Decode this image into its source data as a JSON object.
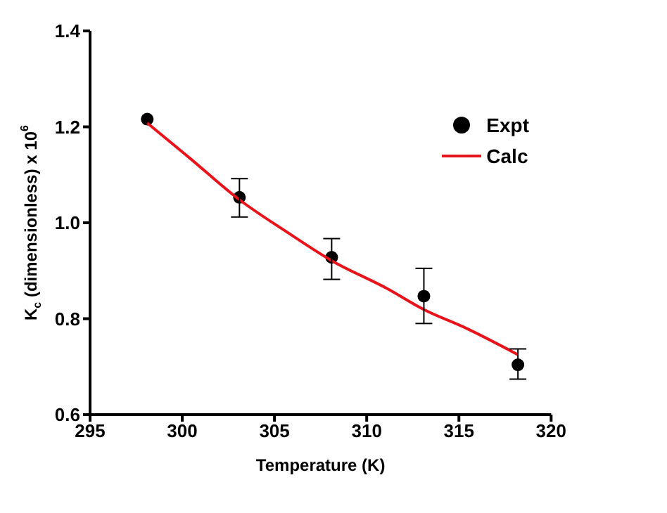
{
  "chart_data": {
    "type": "scatter",
    "xlabel": "Temperature (K)",
    "ylabel": "K$_{c}$ (dimensionless) x 10$^{6}$",
    "xlim": [
      295,
      320
    ],
    "xticks": [
      295,
      300,
      305,
      310,
      315,
      320
    ],
    "ylim": [
      0.6,
      1.4
    ],
    "yticks": [
      0.6,
      0.8,
      {
        "value": 1,
        "label": "1.0"
      },
      1.2,
      1.4
    ],
    "legend": "top right",
    "series": [
      {
        "name": "Expt",
        "color": "#000000",
        "marker": "circle",
        "x": [
          298.1,
          303.1,
          308.1,
          313.1,
          318.2
        ],
        "values": [
          1.216,
          1.053,
          0.928,
          0.847,
          0.704
        ],
        "errors": [
          null,
          [
            1.012,
            1.092
          ],
          [
            0.882,
            0.967
          ],
          [
            0.79,
            0.905
          ],
          [
            0.674,
            0.737
          ]
        ]
      },
      {
        "name": "Calc",
        "type": "line",
        "color": "#e8141b",
        "marker": "none",
        "line_style": "solid",
        "x": [
          298.1,
          300.4,
          303.1,
          305.7,
          308.1,
          311.1,
          313.1,
          315.4,
          318.2
        ],
        "values": [
          1.208,
          1.135,
          1.048,
          0.98,
          0.921,
          0.863,
          0.819,
          0.78,
          0.725
        ]
      }
    ]
  }
}
